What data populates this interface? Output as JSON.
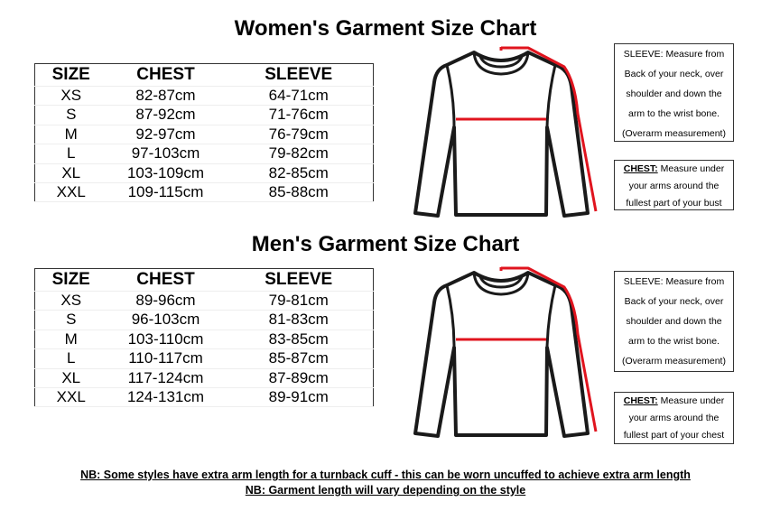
{
  "women": {
    "title": "Women's Garment Size Chart",
    "headers": [
      "SIZE",
      "CHEST",
      "SLEEVE"
    ],
    "rows": [
      [
        "XS",
        "82-87cm",
        "64-71cm"
      ],
      [
        "S",
        "87-92cm",
        "71-76cm"
      ],
      [
        "M",
        "92-97cm",
        "76-79cm"
      ],
      [
        "L",
        "97-103cm",
        "79-82cm"
      ],
      [
        "XL",
        "103-109cm",
        "82-85cm"
      ],
      [
        "XXL",
        "109-115cm",
        "85-88cm"
      ]
    ],
    "sleeve_note": [
      "SLEEVE: Measure from",
      "Back of your neck, over",
      "shoulder and down the",
      "arm to the wrist bone.",
      "(Overarm measurement)"
    ],
    "chest_label": "CHEST:",
    "chest_note": [
      "Measure under",
      "your arms around the",
      "fullest part of your bust"
    ]
  },
  "men": {
    "title": "Men's Garment Size Chart",
    "headers": [
      "SIZE",
      "CHEST",
      "SLEEVE"
    ],
    "rows": [
      [
        "XS",
        "89-96cm",
        "79-81cm"
      ],
      [
        "S",
        "96-103cm",
        "81-83cm"
      ],
      [
        "M",
        "103-110cm",
        "83-85cm"
      ],
      [
        "L",
        "110-117cm",
        "85-87cm"
      ],
      [
        "XL",
        "117-124cm",
        "87-89cm"
      ],
      [
        "XXL",
        "124-131cm",
        "89-91cm"
      ]
    ],
    "sleeve_note": [
      "SLEEVE: Measure from",
      "Back of your neck, over",
      "shoulder and down the",
      "arm to the wrist bone.",
      "(Overarm measurement)"
    ],
    "chest_label": "CHEST:",
    "chest_note": [
      "Measure under",
      "your arms around the",
      "fullest part of your chest"
    ]
  },
  "notes": [
    "NB: Some styles have extra arm length for a turnback cuff - this can be worn uncuffed to achieve extra arm length",
    "NB: Garment length will vary depending on the style"
  ],
  "colors": {
    "measure_line": "#e0141e",
    "outline": "#1a1a1a"
  }
}
